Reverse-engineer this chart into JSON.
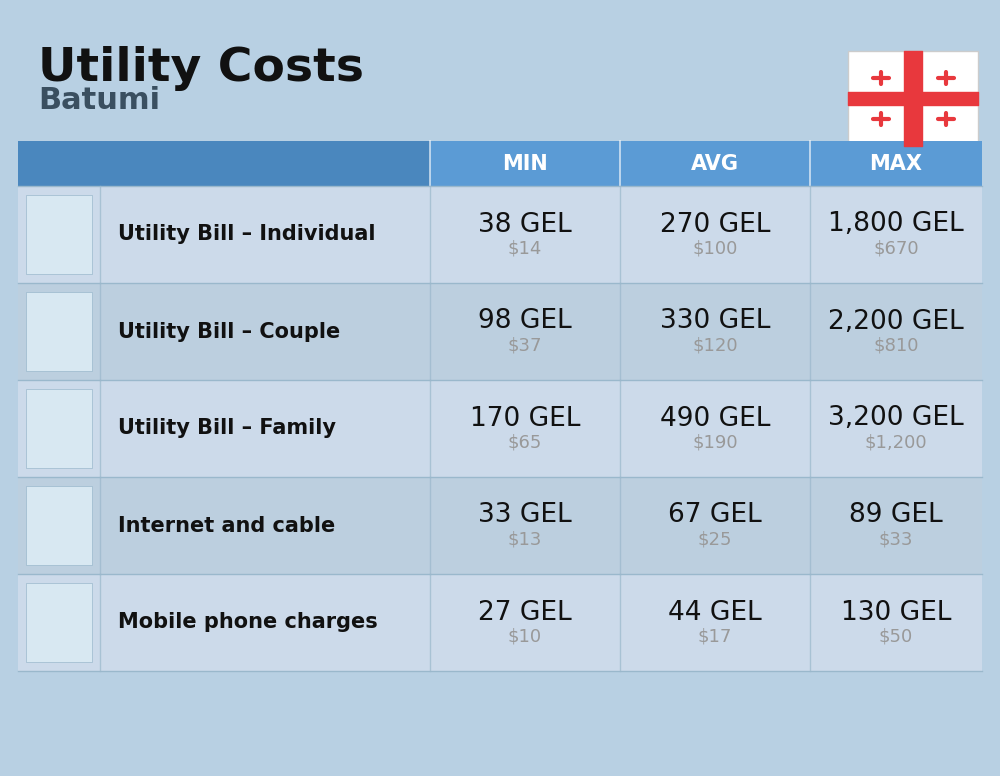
{
  "title": "Utility Costs",
  "subtitle": "Batumi",
  "background_color": "#b8d0e3",
  "header_bg_color": "#5b9bd5",
  "header_text_color": "#ffffff",
  "row_bg_color_1": "#ccdaea",
  "row_bg_color_2": "#bccfdf",
  "divider_color": "#9ab8cc",
  "col_header_labels": [
    "MIN",
    "AVG",
    "MAX"
  ],
  "rows": [
    {
      "label": "Utility Bill – Individual",
      "min_gel": "38 GEL",
      "min_usd": "$14",
      "avg_gel": "270 GEL",
      "avg_usd": "$100",
      "max_gel": "1,800 GEL",
      "max_usd": "$670"
    },
    {
      "label": "Utility Bill – Couple",
      "min_gel": "98 GEL",
      "min_usd": "$37",
      "avg_gel": "330 GEL",
      "avg_usd": "$120",
      "max_gel": "2,200 GEL",
      "max_usd": "$810"
    },
    {
      "label": "Utility Bill – Family",
      "min_gel": "170 GEL",
      "min_usd": "$65",
      "avg_gel": "490 GEL",
      "avg_usd": "$190",
      "max_gel": "3,200 GEL",
      "max_usd": "$1,200"
    },
    {
      "label": "Internet and cable",
      "min_gel": "33 GEL",
      "min_usd": "$13",
      "avg_gel": "67 GEL",
      "avg_usd": "$25",
      "max_gel": "89 GEL",
      "max_usd": "$33"
    },
    {
      "label": "Mobile phone charges",
      "min_gel": "27 GEL",
      "min_usd": "$10",
      "avg_gel": "44 GEL",
      "avg_usd": "$17",
      "max_gel": "130 GEL",
      "max_usd": "$50"
    }
  ],
  "title_fontsize": 34,
  "subtitle_fontsize": 22,
  "header_fontsize": 15,
  "label_fontsize": 15,
  "gel_fontsize": 19,
  "usd_fontsize": 13,
  "usd_color": "#999999",
  "cross_color": "#e8383d"
}
